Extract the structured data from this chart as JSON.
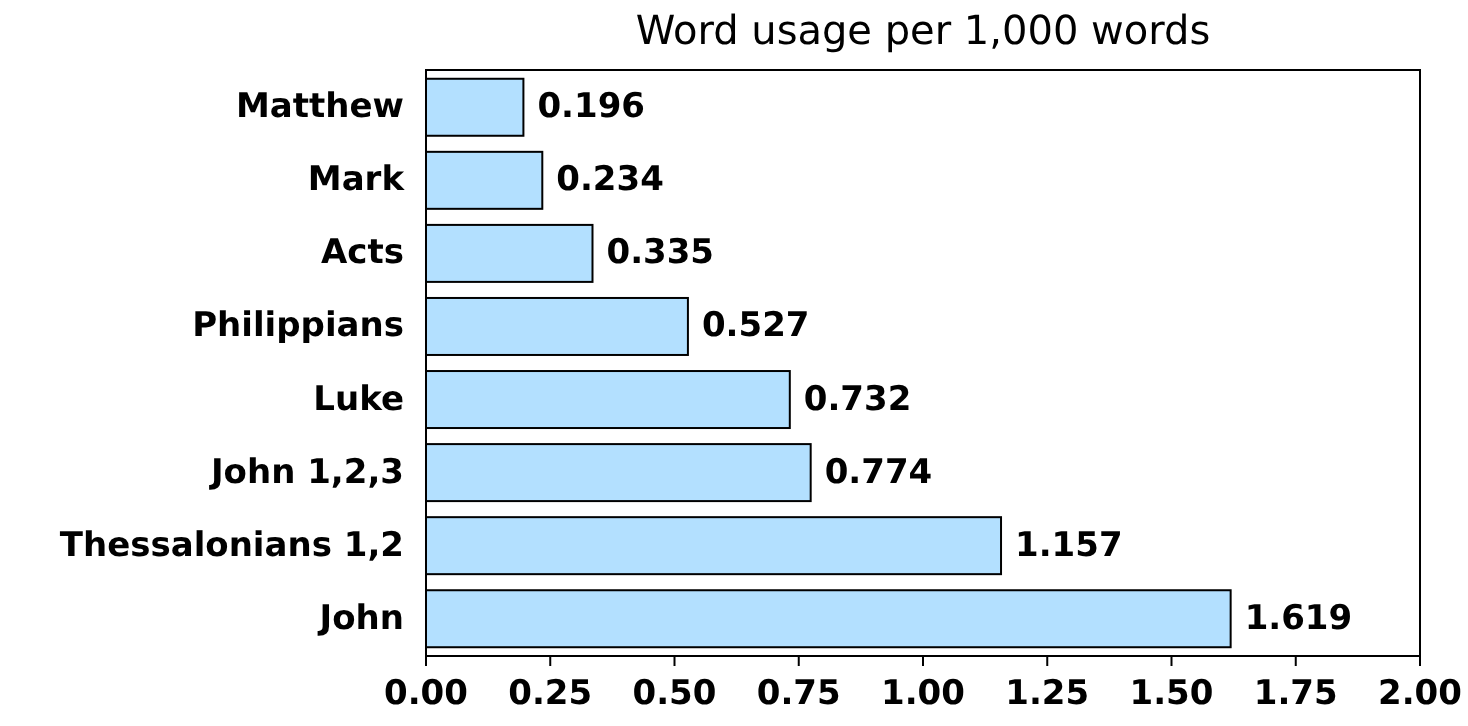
{
  "chart_data": {
    "type": "bar",
    "orientation": "horizontal",
    "title": "Word usage per 1,000 words",
    "categories": [
      "Matthew",
      "Mark",
      "Acts",
      "Philippians",
      "Luke",
      "John 1,2,3",
      "Thessalonians 1,2",
      "John"
    ],
    "values": [
      0.196,
      0.234,
      0.335,
      0.527,
      0.732,
      0.774,
      1.157,
      1.619
    ],
    "color": "#b3e0ff",
    "data_labels": true,
    "grid": false,
    "xlim": [
      0,
      2
    ],
    "xticks": [
      {
        "value": 0,
        "label": "0.00"
      },
      {
        "value": 0.25,
        "label": "0.25"
      },
      {
        "value": 0.5,
        "label": "0.50"
      },
      {
        "value": 0.75,
        "label": "0.75"
      },
      {
        "value": 1,
        "label": "1.00"
      },
      {
        "value": 1.25,
        "label": "1.25"
      },
      {
        "value": 1.5,
        "label": "1.50"
      },
      {
        "value": 1.75,
        "label": "1.75"
      },
      {
        "value": 2,
        "label": "2.00"
      }
    ]
  }
}
